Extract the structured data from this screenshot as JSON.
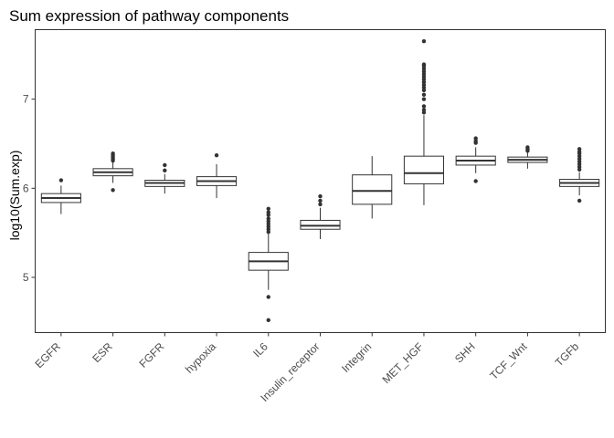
{
  "chart_data": {
    "type": "boxplot",
    "title": "Sum expression of pathway components",
    "xlabel": "",
    "ylabel": "log10(Sum.exp)",
    "ylim": [
      4.38,
      7.78
    ],
    "yticks": [
      5,
      6,
      7
    ],
    "grid": false,
    "legend": "none",
    "colors": {
      "box_stroke": "#333333",
      "box_fill": "#ffffff",
      "outlier": "#333333",
      "axis_text": "#4d4d4d"
    },
    "categories": [
      "EGFR",
      "ESR",
      "FGFR",
      "hypoxia",
      "IL6",
      "Insulin_receptor",
      "Integrin",
      "MET_HGF",
      "SHH",
      "TCF_Wnt",
      "TGFb"
    ],
    "boxes": [
      {
        "category": "EGFR",
        "min": 5.71,
        "q1": 5.84,
        "median": 5.89,
        "q3": 5.94,
        "max": 6.03,
        "outliers": [
          6.09
        ]
      },
      {
        "category": "ESR",
        "min": 6.06,
        "q1": 6.14,
        "median": 6.18,
        "q3": 6.22,
        "max": 6.3,
        "outliers": [
          5.98,
          6.31,
          6.33,
          6.35,
          6.37,
          6.39
        ]
      },
      {
        "category": "FGFR",
        "min": 5.94,
        "q1": 6.02,
        "median": 6.06,
        "q3": 6.09,
        "max": 6.16,
        "outliers": [
          6.2,
          6.26
        ]
      },
      {
        "category": "hypoxia",
        "min": 5.89,
        "q1": 6.03,
        "median": 6.08,
        "q3": 6.13,
        "max": 6.27,
        "outliers": [
          6.37
        ]
      },
      {
        "category": "IL6",
        "min": 4.86,
        "q1": 5.08,
        "median": 5.18,
        "q3": 5.28,
        "max": 5.49,
        "outliers": [
          4.52,
          4.78,
          5.51,
          5.54,
          5.57,
          5.6,
          5.63,
          5.66,
          5.7,
          5.73,
          5.77
        ]
      },
      {
        "category": "Insulin_receptor",
        "min": 5.43,
        "q1": 5.54,
        "median": 5.58,
        "q3": 5.64,
        "max": 5.78,
        "outliers": [
          5.82,
          5.86,
          5.91
        ]
      },
      {
        "category": "Integrin",
        "min": 5.66,
        "q1": 5.82,
        "median": 5.97,
        "q3": 6.15,
        "max": 6.36,
        "outliers": []
      },
      {
        "category": "MET_HGF",
        "min": 5.81,
        "q1": 6.05,
        "median": 6.17,
        "q3": 6.36,
        "max": 6.82,
        "outliers": [
          6.85,
          6.88,
          6.92,
          7.0,
          7.05,
          7.1,
          7.13,
          7.16,
          7.19,
          7.22,
          7.25,
          7.28,
          7.31,
          7.34,
          7.37,
          7.39,
          7.65
        ]
      },
      {
        "category": "SHH",
        "min": 6.17,
        "q1": 6.26,
        "median": 6.31,
        "q3": 6.36,
        "max": 6.46,
        "outliers": [
          6.08,
          6.51,
          6.53,
          6.56
        ]
      },
      {
        "category": "TCF_Wnt",
        "min": 6.22,
        "q1": 6.29,
        "median": 6.32,
        "q3": 6.35,
        "max": 6.41,
        "outliers": [
          6.42,
          6.44,
          6.46
        ]
      },
      {
        "category": "TGFb",
        "min": 5.92,
        "q1": 6.02,
        "median": 6.06,
        "q3": 6.1,
        "max": 6.18,
        "outliers": [
          5.86,
          6.21,
          6.24,
          6.27,
          6.3,
          6.33,
          6.36,
          6.39,
          6.41,
          6.44
        ]
      }
    ]
  }
}
